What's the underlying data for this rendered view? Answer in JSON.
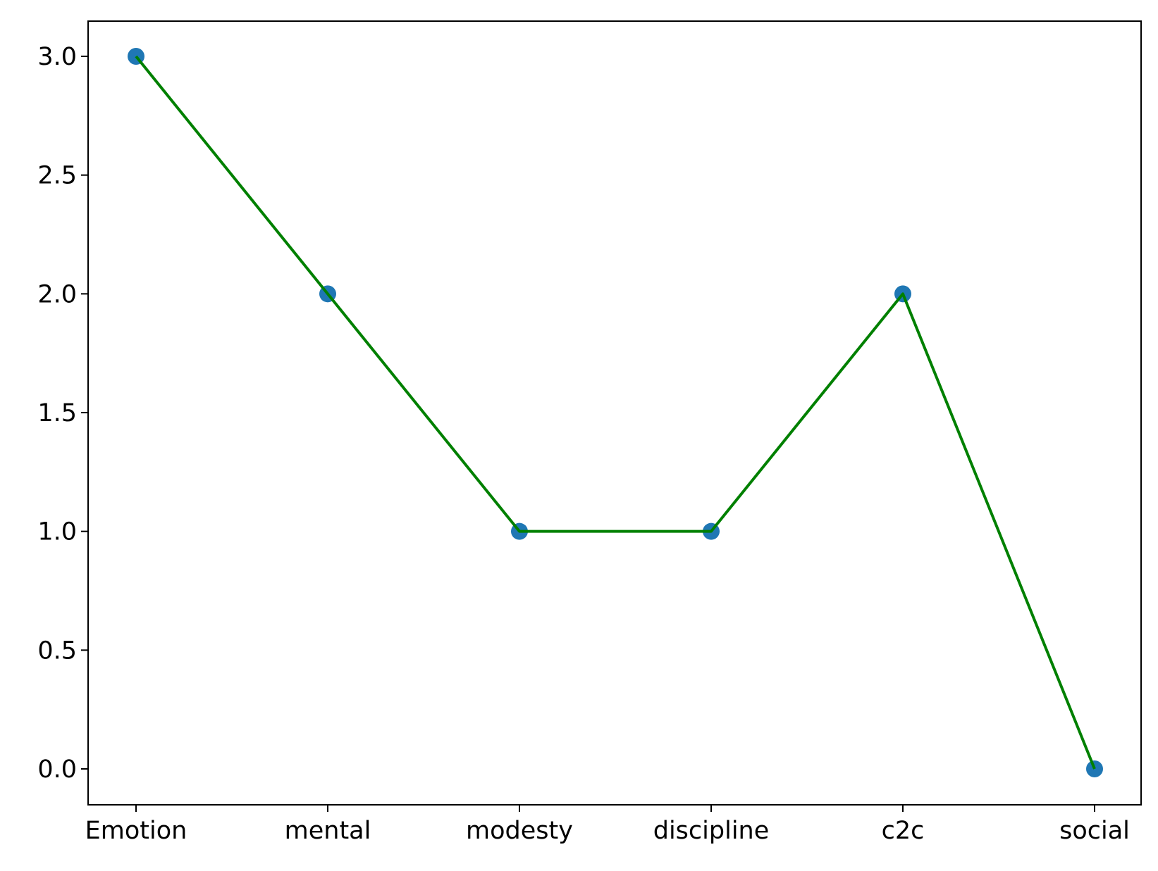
{
  "chart_data": {
    "type": "line",
    "categories": [
      "Emotion",
      "mental",
      "modesty",
      "discipline",
      "c2c",
      "social"
    ],
    "series": [
      {
        "values": [
          3,
          2,
          1,
          1,
          2,
          0
        ],
        "marker_color": "#1f77b4",
        "line_color": "#008000"
      }
    ],
    "yticks": [
      "0.0",
      "0.5",
      "1.0",
      "1.5",
      "2.0",
      "2.5",
      "3.0"
    ],
    "ylim": [
      -0.15,
      3.15
    ],
    "title": "",
    "xlabel": "",
    "ylabel": "",
    "grid": false,
    "legend": false
  }
}
